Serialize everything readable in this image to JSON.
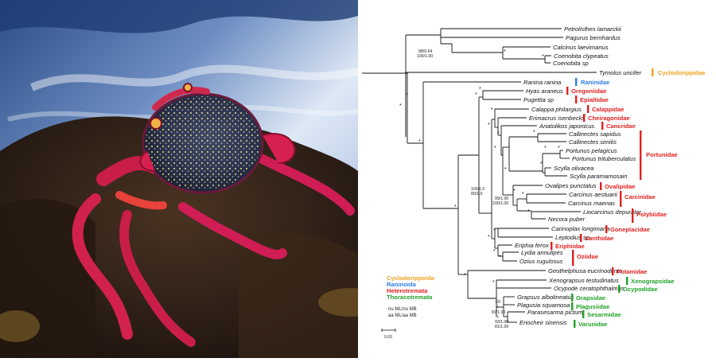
{
  "photo": {
    "subject": "red rock crab on dark volcanic rock with crashing sea water"
  },
  "tree": {
    "taxa": {
      "petrolisthes": "Petrolisthes lamarckii",
      "pagurus": "Pagurus bernhardus",
      "calcinus": "Calcinus laevimanus",
      "coenobita_c": "Coenobita clypeatus",
      "coenobita_sp": "Coenobita sp",
      "tymolus": "Tymolus uncifer",
      "ranina": "Ranina ranina",
      "hyas": "Hyas araneus",
      "pugettia": "Pugettia sp",
      "calappa": "Calappa philargius",
      "erimacrus": "Erimacrus isenbeckii",
      "anatolikos": "Anatolikos japonicus",
      "callinectes_sap": "Callinectes sapidus",
      "callinectes_sim": "Callinectes similis",
      "portunus_p": "Portunus pelagicus",
      "portunus_t": "Portunus trituberculatus",
      "scylla_o": "Scylla olivacea",
      "scylla_p": "Scylla paramamosain",
      "ovalipes": "Ovalipes punctatus",
      "carcinus_a": "Carcinus aestuarii",
      "carcinus_m": "Carcinus maenas",
      "liocarcinus": "Liocarcinus depurator",
      "necora": "Necora puber",
      "carinoplax": "Carinoplax longimana",
      "leptodius": "Leptodius sp",
      "eriphia": "Eriphia ferox",
      "lydia": "Lydia annulipes",
      "ozius": "Ozius rugulosus",
      "geothelphusa": "Geothelphusa eucrinodonta",
      "xenograpsus": "Xenograpsus testudinatus",
      "ocypode": "Ocypode ceratophthalmus",
      "grapsus": "Grapsus albolineatus",
      "plagusia": "Plagusia squamosa",
      "parasesarma": "Parasesarma pictum",
      "eriocheir": "Eriocheir sinensis"
    },
    "families": {
      "cyclodorippidae": "Cyclodorippidae",
      "raninidae": "Raninidae",
      "oregoniidae": "Oregoniidae",
      "epialtidae": "Epialtidae",
      "calappidae": "Calappidae",
      "cheiragonidae": "Cheiragonidae",
      "cancridae": "Cancridae",
      "portunidae": "Portunidae",
      "ovalipidae": "Ovalipidae",
      "carcinidae": "Carcinidae",
      "polybiidae": "Polybiidae",
      "goneplacidae": "Goneplacidae",
      "xanthidae": "Xanthidae",
      "eriphiidae": "Eriphiidae",
      "oziidae": "Oziidae",
      "potamidae": "Potamidae",
      "xenograpsidae": "Xenograpsidae",
      "ocypodidae": "Ocypodidae",
      "grapsidae": "Grapsidae",
      "plagusiidae": "Plagusiidae",
      "sesarmidae": "Sesarmidae",
      "varunidae": "Varunidae"
    },
    "support": {
      "s_88": "88/0.64",
      "s_100a": "100/1.00",
      "s_100b": "100/1.0",
      "s_80": "80/1.0",
      "s_99": "99/1.00",
      "s_100c": "100/1.00",
      "s_70": "70/",
      "s_dash": "-/-",
      "s_81": "81/1.00",
      "s_dash2": "-/-",
      "s_93": "93/1.00",
      "s_81b": "81/1.00",
      "star": "*"
    },
    "legend": {
      "cyclodorippoida": "Cyclodorippoida",
      "raninoida": "Raninoida",
      "heterotremata": "Heterotremata",
      "thoracotremata": "Thoracotremata"
    },
    "notes": {
      "nu": "nu ML/nu MB",
      "aa": "aa ML/aa MB"
    },
    "scale_label": "0.03"
  },
  "colors": {
    "cyclodorippoida": "#f0a020",
    "raninoida": "#2a7de1",
    "heterotremata": "#e02020",
    "thoracotremata": "#22a02a"
  }
}
